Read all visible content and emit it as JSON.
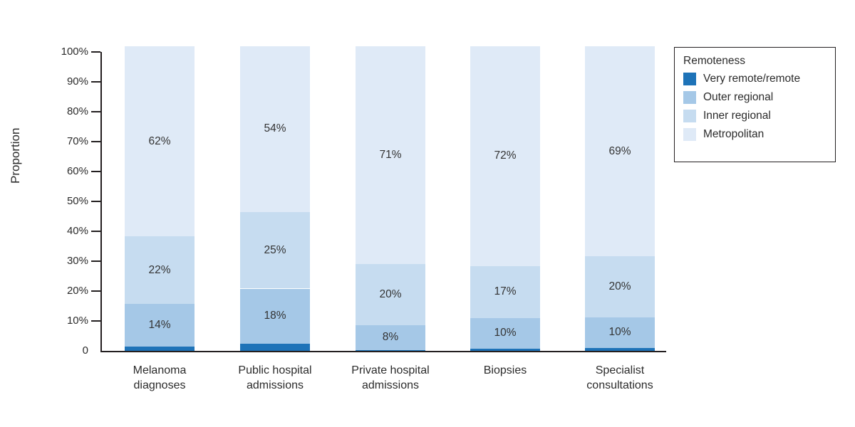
{
  "chart_data": {
    "type": "bar",
    "subtype": "stacked-percentage",
    "title": "",
    "ylabel": "Proportion",
    "xlabel": "",
    "ylim": [
      0,
      100
    ],
    "yticks": [
      "0",
      "10%",
      "20%",
      "30%",
      "40%",
      "50%",
      "60%",
      "70%",
      "80%",
      "90%",
      "100%"
    ],
    "grid": false,
    "legend_title": "Remoteness",
    "legend_position": "top-right",
    "categories": [
      "Melanoma\ndiagnoses",
      "Public hospital\nadmissions",
      "Private hospital\nadmissions",
      "Biopsies",
      "Specialist\nconsultations"
    ],
    "series": [
      {
        "name": "Very remote/remote",
        "color": "#1e73b8",
        "values": [
          1.3,
          2.3,
          0.3,
          0.8,
          1.0
        ],
        "values_note": "estimated from pixels; not labelled in chart",
        "show_labels": false
      },
      {
        "name": "Outer regional",
        "color": "#a5c8e7",
        "values": [
          14,
          18,
          8,
          10,
          10
        ],
        "show_labels": true
      },
      {
        "name": "Inner regional",
        "color": "#c6dcf0",
        "values": [
          22,
          25,
          20,
          17,
          20
        ],
        "show_labels": true
      },
      {
        "name": "Metropolitan",
        "color": "#dfeaf7",
        "values": [
          62,
          54,
          71,
          72,
          69
        ],
        "show_labels": true
      }
    ],
    "axis_color": "#231f20"
  }
}
